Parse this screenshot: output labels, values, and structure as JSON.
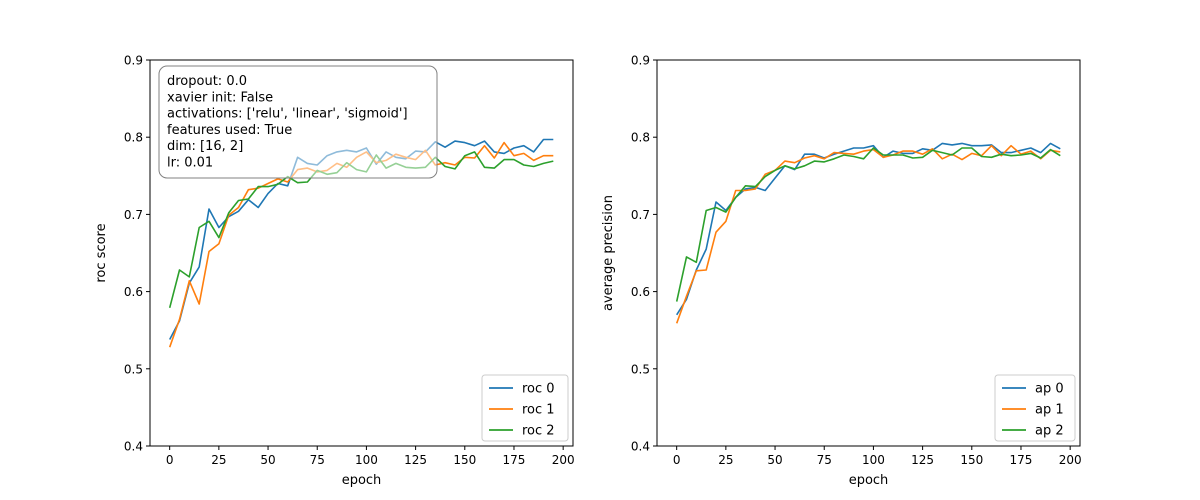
{
  "chart_data": [
    {
      "type": "line",
      "xlabel": "epoch",
      "ylabel": "roc score",
      "xlim": [
        -10,
        205
      ],
      "ylim": [
        0.4,
        0.9
      ],
      "xticks": [
        0,
        25,
        50,
        75,
        100,
        125,
        150,
        175,
        200
      ],
      "yticks": [
        0.4,
        0.5,
        0.6,
        0.7,
        0.8,
        0.9
      ],
      "x": [
        0,
        5,
        10,
        15,
        20,
        25,
        30,
        35,
        40,
        45,
        50,
        55,
        60,
        65,
        70,
        75,
        80,
        85,
        90,
        95,
        100,
        105,
        110,
        115,
        120,
        125,
        130,
        135,
        140,
        145,
        150,
        155,
        160,
        165,
        170,
        175,
        180,
        185,
        190,
        195
      ],
      "series": [
        {
          "name": "roc 0",
          "color": "#1f77b4",
          "values": [
            0.538,
            0.562,
            0.611,
            0.632,
            0.707,
            0.683,
            0.697,
            0.704,
            0.719,
            0.709,
            0.727,
            0.74,
            0.737,
            0.774,
            0.766,
            0.764,
            0.776,
            0.781,
            0.783,
            0.781,
            0.786,
            0.765,
            0.781,
            0.774,
            0.772,
            0.782,
            0.781,
            0.794,
            0.787,
            0.795,
            0.793,
            0.789,
            0.795,
            0.781,
            0.779,
            0.786,
            0.789,
            0.781,
            0.797,
            0.797
          ]
        },
        {
          "name": "roc 1",
          "color": "#ff7f0e",
          "values": [
            0.528,
            0.564,
            0.614,
            0.584,
            0.652,
            0.662,
            0.699,
            0.709,
            0.732,
            0.734,
            0.74,
            0.746,
            0.742,
            0.758,
            0.76,
            0.755,
            0.757,
            0.766,
            0.761,
            0.774,
            0.781,
            0.767,
            0.77,
            0.778,
            0.774,
            0.771,
            0.783,
            0.764,
            0.767,
            0.764,
            0.774,
            0.773,
            0.789,
            0.773,
            0.793,
            0.776,
            0.779,
            0.77,
            0.776,
            0.776
          ]
        },
        {
          "name": "roc 2",
          "color": "#2ca02c",
          "values": [
            0.579,
            0.628,
            0.619,
            0.683,
            0.691,
            0.67,
            0.702,
            0.718,
            0.72,
            0.736,
            0.736,
            0.739,
            0.749,
            0.741,
            0.742,
            0.757,
            0.752,
            0.754,
            0.767,
            0.758,
            0.755,
            0.777,
            0.76,
            0.766,
            0.761,
            0.76,
            0.761,
            0.774,
            0.762,
            0.759,
            0.776,
            0.781,
            0.761,
            0.76,
            0.771,
            0.771,
            0.764,
            0.762,
            0.766,
            0.769
          ]
        }
      ],
      "legend": "lower-right",
      "annotation": {
        "position": "top-left",
        "lines": [
          "dropout: 0.0",
          "xavier init: False",
          "activations: ['relu', 'linear', 'sigmoid']",
          "features used: True",
          "dim: [16, 2]",
          "lr: 0.01"
        ]
      }
    },
    {
      "type": "line",
      "xlabel": "epoch",
      "ylabel": "average precision",
      "xlim": [
        -10,
        205
      ],
      "ylim": [
        0.4,
        0.9
      ],
      "xticks": [
        0,
        25,
        50,
        75,
        100,
        125,
        150,
        175,
        200
      ],
      "yticks": [
        0.4,
        0.5,
        0.6,
        0.7,
        0.8,
        0.9
      ],
      "x": [
        0,
        5,
        10,
        15,
        20,
        25,
        30,
        35,
        40,
        45,
        50,
        55,
        60,
        65,
        70,
        75,
        80,
        85,
        90,
        95,
        100,
        105,
        110,
        115,
        120,
        125,
        130,
        135,
        140,
        145,
        150,
        155,
        160,
        165,
        170,
        175,
        180,
        185,
        190,
        195
      ],
      "series": [
        {
          "name": "ap 0",
          "color": "#1f77b4",
          "values": [
            0.57,
            0.59,
            0.628,
            0.655,
            0.716,
            0.705,
            0.722,
            0.733,
            0.735,
            0.731,
            0.747,
            0.763,
            0.758,
            0.778,
            0.778,
            0.773,
            0.778,
            0.782,
            0.786,
            0.786,
            0.789,
            0.774,
            0.782,
            0.779,
            0.779,
            0.785,
            0.783,
            0.792,
            0.79,
            0.792,
            0.789,
            0.789,
            0.79,
            0.78,
            0.78,
            0.783,
            0.786,
            0.78,
            0.792,
            0.785
          ]
        },
        {
          "name": "ap 1",
          "color": "#ff7f0e",
          "values": [
            0.559,
            0.594,
            0.627,
            0.628,
            0.677,
            0.691,
            0.731,
            0.731,
            0.733,
            0.752,
            0.757,
            0.769,
            0.767,
            0.773,
            0.776,
            0.772,
            0.78,
            0.779,
            0.778,
            0.782,
            0.784,
            0.774,
            0.777,
            0.782,
            0.782,
            0.778,
            0.785,
            0.772,
            0.778,
            0.771,
            0.779,
            0.776,
            0.789,
            0.776,
            0.789,
            0.778,
            0.782,
            0.772,
            0.783,
            0.781
          ]
        },
        {
          "name": "ap 2",
          "color": "#2ca02c",
          "values": [
            0.587,
            0.645,
            0.638,
            0.705,
            0.709,
            0.703,
            0.722,
            0.737,
            0.736,
            0.749,
            0.757,
            0.763,
            0.759,
            0.763,
            0.769,
            0.768,
            0.772,
            0.777,
            0.775,
            0.772,
            0.786,
            0.777,
            0.777,
            0.777,
            0.773,
            0.774,
            0.783,
            0.78,
            0.777,
            0.786,
            0.786,
            0.775,
            0.774,
            0.778,
            0.776,
            0.777,
            0.779,
            0.773,
            0.784,
            0.776
          ]
        }
      ],
      "legend": "lower-right"
    }
  ]
}
